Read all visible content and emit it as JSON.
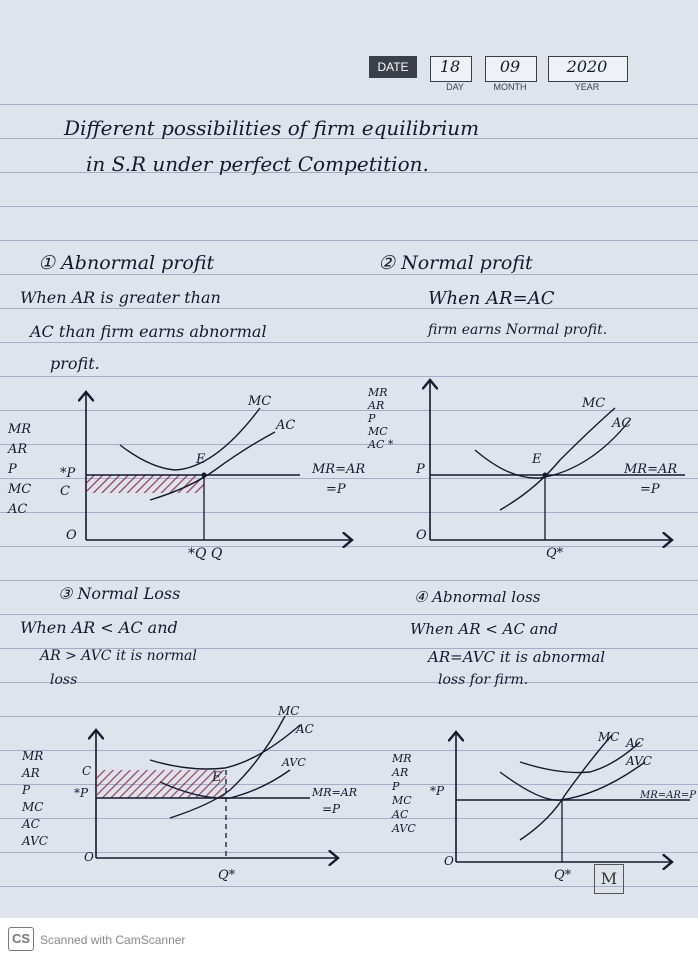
{
  "header": {
    "date_label": "DATE",
    "day": "18",
    "month": "09",
    "year": "2020",
    "day_caption": "DAY",
    "month_caption": "MONTH",
    "year_caption": "YEAR"
  },
  "title": {
    "line1": "Different possibilities of firm equilibrium",
    "line2": "in S.R under perfect Competition."
  },
  "case1": {
    "heading": "① Abnormal profit",
    "text1": "When AR is greater than",
    "text2": "AC than firm earns abnormal",
    "text3": "profit.",
    "y_labels": [
      "MR",
      "AR",
      "P",
      "MC",
      "AC"
    ],
    "p_mark": "*P",
    "c_mark": "C",
    "origin": "O",
    "e_mark": "E",
    "mc": "MC",
    "ac": "AC",
    "line_label1": "MR=AR",
    "line_label2": "=P",
    "q_label": "*Q Q"
  },
  "case2": {
    "heading": "② Normal profit",
    "text1": "When AR=AC",
    "text2": "firm earns Normal profit.",
    "y_labels": [
      "MR",
      "AR",
      "P",
      "MC",
      "AC *"
    ],
    "p_mark": "P",
    "origin": "O",
    "e_mark": "E",
    "mc": "MC",
    "ac": "AC",
    "line_label1": "MR=AR",
    "line_label2": "=P",
    "q_label": "Q*"
  },
  "case3": {
    "heading": "③ Normal Loss",
    "text1": "When AR < AC and",
    "text2": "AR > AVC it is normal",
    "text3": "loss",
    "y_labels": [
      "MR",
      "AR",
      "P",
      "MC",
      "AC",
      "AVC"
    ],
    "p_mark": "*P",
    "c_mark": "C",
    "origin": "O",
    "e_mark": "E",
    "mc": "MC",
    "ac": "AC",
    "avc": "AVC",
    "line_label1": "MR=AR",
    "line_label2": "=P",
    "q_label": "Q*"
  },
  "case4": {
    "heading": "④ Abnormal loss",
    "text1": "When AR < AC  and",
    "text2": "AR=AVC it is abnormal",
    "text3": "loss for firm.",
    "y_labels": [
      "MR",
      "AR",
      "P",
      "MC",
      "AC",
      "AVC"
    ],
    "p_mark": "*P",
    "origin": "O",
    "mc": "MC",
    "ac": "AC",
    "avc": "AVC",
    "line_label1": "MR=AR=P",
    "q_label": "Q*",
    "stamp": "M"
  },
  "footer": {
    "logo": "CS",
    "text": "Scanned with CamScanner"
  },
  "colors": {
    "paper": "#dfe4ec",
    "rule": "#9fb0c8",
    "ink": "#141a2e",
    "hatch": "#8b2a4a"
  }
}
